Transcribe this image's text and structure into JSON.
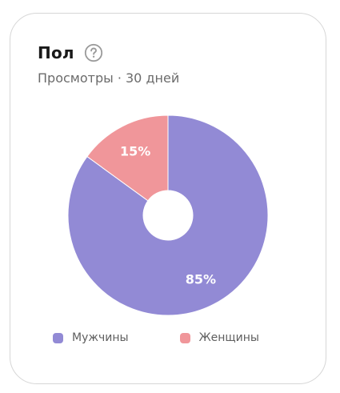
{
  "card": {
    "title": "Пол",
    "help_icon": "question-circle-icon",
    "subtitle": "Просмотры · 30 дней"
  },
  "chart_data": {
    "type": "pie",
    "donut": true,
    "start": "top",
    "direction": "clockwise",
    "legend_position": "bottom",
    "slices": [
      {
        "label": "Мужчины",
        "value": 85,
        "display": "85%",
        "color": "#928ad5"
      },
      {
        "label": "Женщины",
        "value": 15,
        "display": "15%",
        "color": "#f0969a"
      }
    ]
  }
}
